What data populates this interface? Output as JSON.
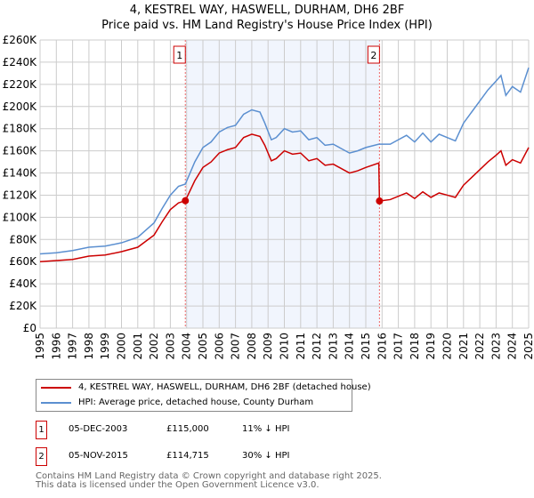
{
  "chart_data": {
    "type": "line",
    "title": "4, KESTREL WAY, HASWELL, DURHAM, DH6 2BF",
    "subtitle": "Price paid vs. HM Land Registry's House Price Index (HPI)",
    "xlim": [
      1995,
      2025
    ],
    "ylim": [
      0,
      260000
    ],
    "x_ticks": [
      "1995",
      "1996",
      "1997",
      "1998",
      "1999",
      "2000",
      "2001",
      "2002",
      "2003",
      "2004",
      "2005",
      "2006",
      "2007",
      "2008",
      "2009",
      "2010",
      "2011",
      "2012",
      "2013",
      "2014",
      "2015",
      "2016",
      "2017",
      "2018",
      "2019",
      "2020",
      "2021",
      "2022",
      "2023",
      "2024",
      "2025"
    ],
    "y_ticks": [
      {
        "v": 0,
        "l": "£0"
      },
      {
        "v": 20000,
        "l": "£20K"
      },
      {
        "v": 40000,
        "l": "£40K"
      },
      {
        "v": 60000,
        "l": "£60K"
      },
      {
        "v": 80000,
        "l": "£80K"
      },
      {
        "v": 100000,
        "l": "£100K"
      },
      {
        "v": 120000,
        "l": "£120K"
      },
      {
        "v": 140000,
        "l": "£140K"
      },
      {
        "v": 160000,
        "l": "£160K"
      },
      {
        "v": 180000,
        "l": "£180K"
      },
      {
        "v": 200000,
        "l": "£200K"
      },
      {
        "v": 220000,
        "l": "£220K"
      },
      {
        "v": 240000,
        "l": "£240K"
      },
      {
        "v": 260000,
        "l": "£260K"
      }
    ],
    "grid": true,
    "shaded_range": [
      2003.92,
      2015.84
    ],
    "series": [
      {
        "name": "4, KESTREL WAY, HASWELL, DURHAM, DH6 2BF (detached house)",
        "color": "#cc0000",
        "x": [
          1995,
          1996,
          1997,
          1998,
          1999,
          2000,
          2001,
          2002,
          2002.5,
          2003,
          2003.5,
          2003.92,
          2004.5,
          2005,
          2005.5,
          2006,
          2006.5,
          2007,
          2007.5,
          2008,
          2008.5,
          2008.8,
          2009.2,
          2009.5,
          2010,
          2010.5,
          2011,
          2011.5,
          2012,
          2012.5,
          2013,
          2013.5,
          2014,
          2014.5,
          2015,
          2015.8,
          2015.84,
          2016.5,
          2017,
          2017.5,
          2018,
          2018.5,
          2019,
          2019.5,
          2020,
          2020.5,
          2021,
          2021.5,
          2022,
          2022.5,
          2023,
          2023.3,
          2023.6,
          2024,
          2024.5,
          2025
        ],
        "y": [
          60000,
          61000,
          62000,
          65000,
          66000,
          69000,
          73000,
          84000,
          96000,
          107000,
          113000,
          115000,
          133000,
          145000,
          150000,
          158000,
          161000,
          163000,
          172000,
          175000,
          173000,
          165000,
          151000,
          153000,
          160000,
          157000,
          158000,
          151000,
          153000,
          147000,
          148000,
          144000,
          140000,
          142000,
          145000,
          149000,
          114715,
          116000,
          119000,
          122000,
          117000,
          123000,
          118000,
          122000,
          120000,
          118000,
          129000,
          136000,
          143000,
          150000,
          156000,
          160000,
          147000,
          152000,
          149000,
          163000
        ]
      },
      {
        "name": "HPI: Average price, detached house, County Durham",
        "color": "#5b8fd0",
        "x": [
          1995,
          1996,
          1997,
          1998,
          1999,
          2000,
          2001,
          2002,
          2002.5,
          2003,
          2003.5,
          2003.92,
          2004.5,
          2005,
          2005.5,
          2006,
          2006.5,
          2007,
          2007.5,
          2008,
          2008.5,
          2008.8,
          2009.2,
          2009.5,
          2010,
          2010.5,
          2011,
          2011.5,
          2012,
          2012.5,
          2013,
          2013.5,
          2014,
          2014.5,
          2015,
          2015.8,
          2016.5,
          2017,
          2017.5,
          2018,
          2018.5,
          2019,
          2019.5,
          2020,
          2020.5,
          2021,
          2021.5,
          2022,
          2022.5,
          2023,
          2023.3,
          2023.6,
          2024,
          2024.5,
          2025
        ],
        "y": [
          67000,
          68000,
          70000,
          73000,
          74000,
          77000,
          82000,
          95000,
          108000,
          120000,
          128000,
          130000,
          150000,
          163000,
          168000,
          177000,
          181000,
          183000,
          193000,
          197000,
          195000,
          185000,
          170000,
          172000,
          180000,
          177000,
          178000,
          170000,
          172000,
          165000,
          166000,
          162000,
          158000,
          160000,
          163000,
          166000,
          166000,
          170000,
          174000,
          168000,
          176000,
          168000,
          175000,
          172000,
          169000,
          185000,
          195000,
          205000,
          215000,
          223000,
          228000,
          210000,
          218000,
          213000,
          235000
        ]
      }
    ],
    "sales": [
      {
        "label": "1",
        "x": 2003.92,
        "y": 115000,
        "date": "05-DEC-2003",
        "price": "£115,000",
        "diff": "11% ↓ HPI"
      },
      {
        "label": "2",
        "x": 2015.84,
        "y": 114715,
        "date": "05-NOV-2015",
        "price": "£114,715",
        "diff": "30% ↓ HPI"
      }
    ]
  },
  "footer": [
    "Contains HM Land Registry data © Crown copyright and database right 2025.",
    "This data is licensed under the Open Government Licence v3.0."
  ]
}
